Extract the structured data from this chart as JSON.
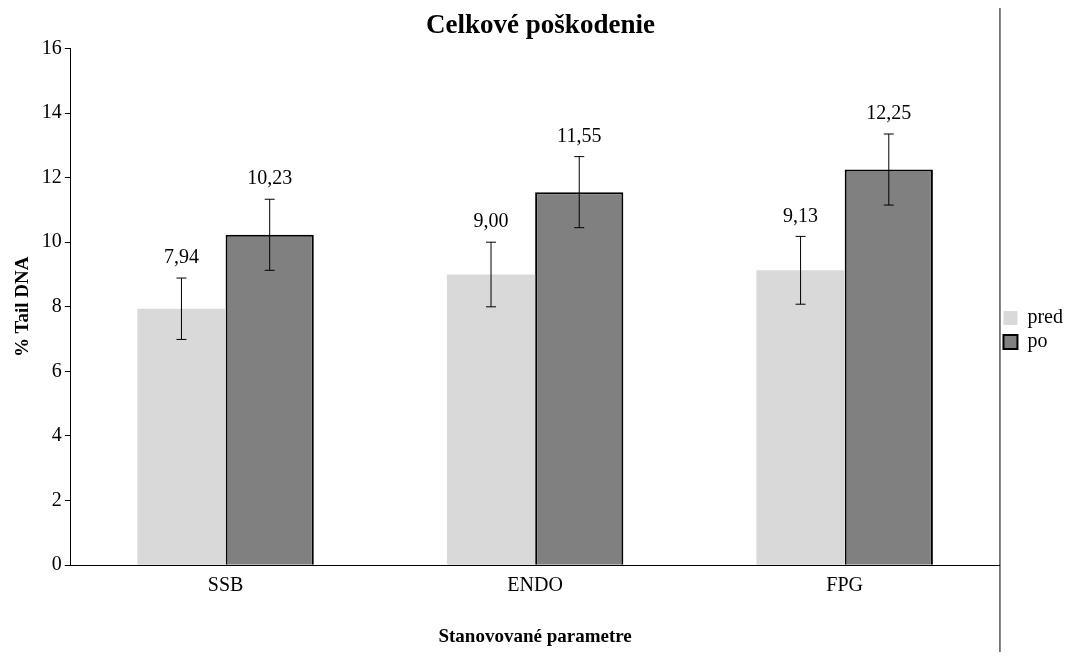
{
  "chart_data": {
    "type": "bar",
    "title": "Celkové poškodenie",
    "xlabel": "Stanovované parametre",
    "ylabel": "% Tail DNA",
    "categories": [
      "SSB",
      "ENDO",
      "FPG"
    ],
    "series": [
      {
        "name": "pred",
        "color": "#d9d9d9",
        "values": [
          7.94,
          9.0,
          9.13
        ],
        "errors": [
          0.95,
          1.0,
          1.05
        ],
        "value_labels": [
          "7,94",
          "9,00",
          "9,13"
        ]
      },
      {
        "name": "po",
        "color": "#808080",
        "values": [
          10.23,
          11.55,
          12.25
        ],
        "errors": [
          1.1,
          1.1,
          1.1
        ],
        "value_labels": [
          "10,23",
          "11,55",
          "12,25"
        ]
      }
    ],
    "ylim": [
      0,
      16
    ],
    "yticks": [
      0,
      2,
      4,
      6,
      8,
      10,
      12,
      14,
      16
    ],
    "grid": false,
    "legend": "right"
  }
}
